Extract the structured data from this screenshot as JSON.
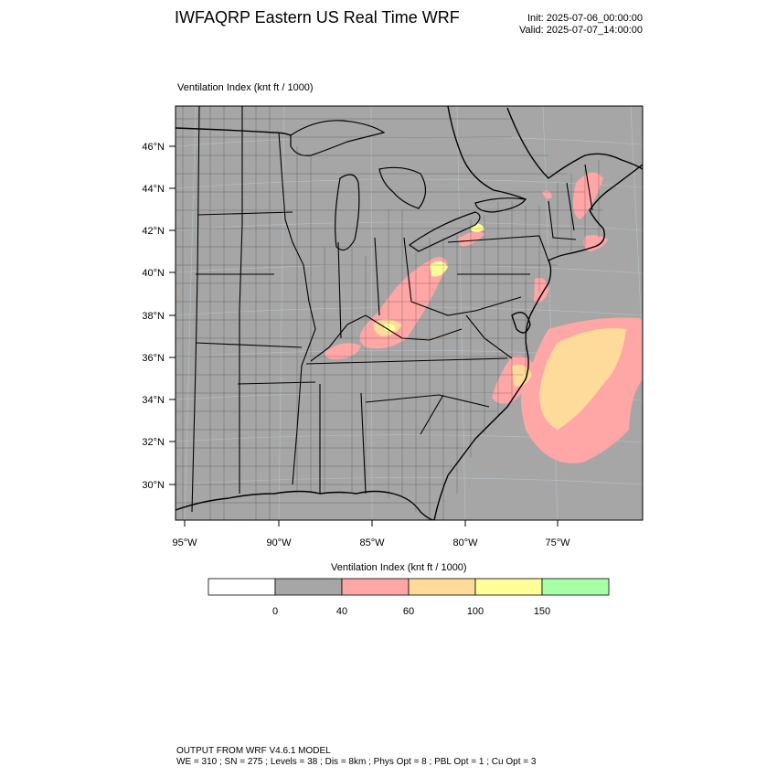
{
  "header": {
    "title": "IWFAQRP Eastern US Real Time WRF",
    "init": "Init: 2025-07-06_00:00:00",
    "valid": "Valid: 2025-07-07_14:00:00"
  },
  "map": {
    "label": "Ventilation Index   (knt ft / 1000)",
    "lat_labels": [
      "46°N",
      "44°N",
      "42°N",
      "40°N",
      "38°N",
      "36°N",
      "34°N",
      "32°N",
      "30°N"
    ],
    "lon_labels": [
      "95°W",
      "90°W",
      "85°W",
      "80°W",
      "75°W"
    ],
    "colors": {
      "land": "#a6a6a6",
      "ocean": "#a6a6a6",
      "boundary": "#000000",
      "vi_40_60": "#ffa6a6",
      "vi_60_100": "#fedb9a",
      "vi_100_150": "#ffff99",
      "grid": "#b7c3c9"
    }
  },
  "legend": {
    "title": "Ventilation Index  (knt ft / 1000)",
    "labels": [
      "0",
      "40",
      "60",
      "100",
      "150"
    ],
    "colors": [
      "#ffffff",
      "#a6a6a6",
      "#ffa6a6",
      "#fedb9a",
      "#ffff99",
      "#a6ffa6"
    ]
  },
  "footer": {
    "line1": "OUTPUT FROM WRF V4.6.1 MODEL",
    "line2": "WE = 310 ; SN = 275 ; Levels = 38 ; Dis = 8km ; Phys Opt = 8 ; PBL Opt = 1 ; Cu Opt = 3"
  }
}
